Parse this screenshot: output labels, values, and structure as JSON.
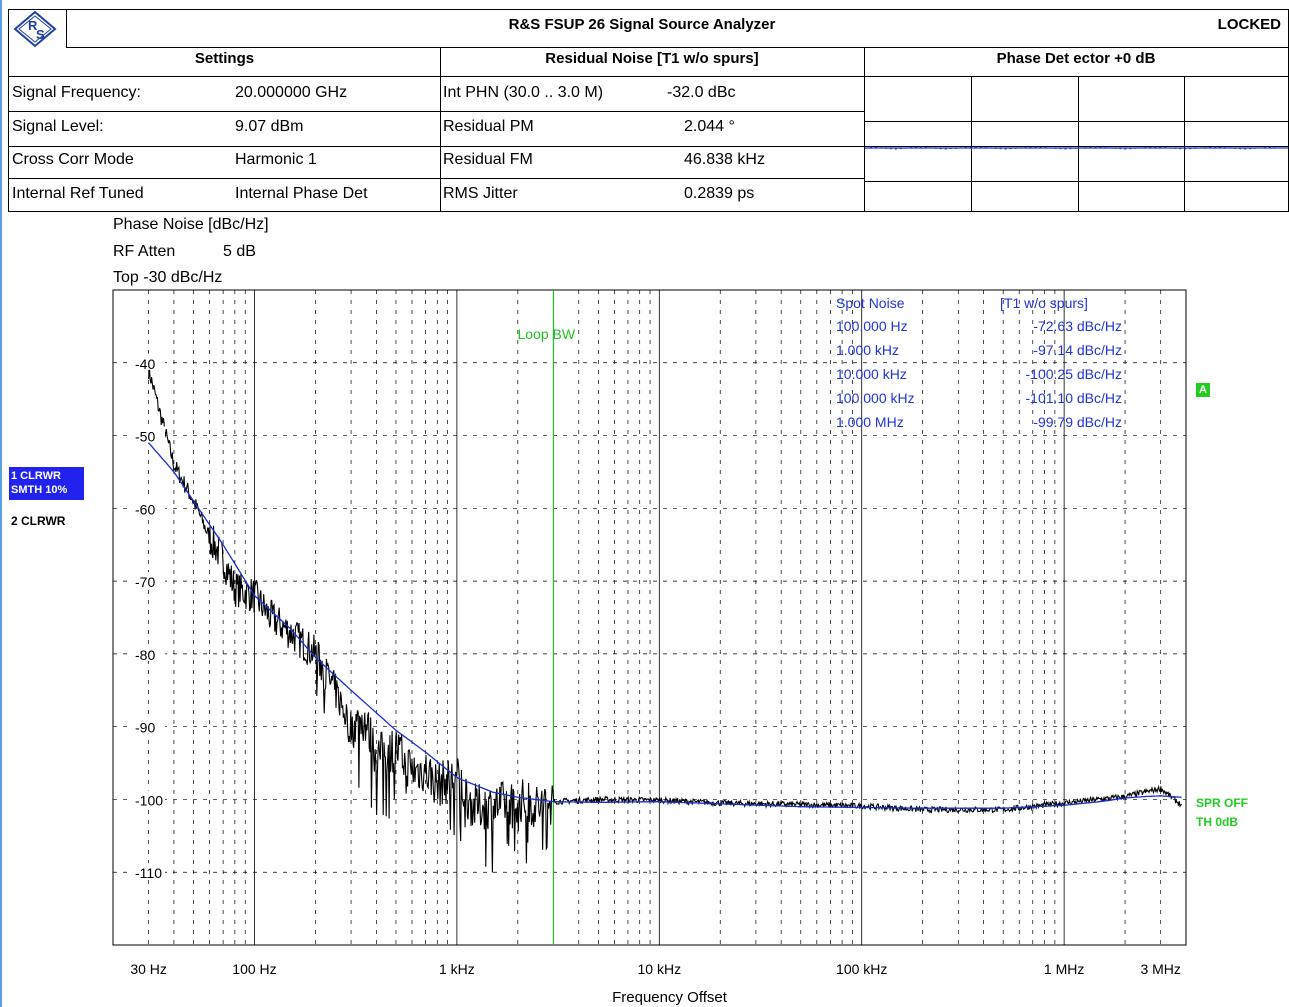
{
  "header": {
    "title": "R&S FSUP 26 Signal Source Analyzer",
    "status": "LOCKED",
    "logo_text": "R&S"
  },
  "settings": {
    "heading": "Settings",
    "rows": [
      {
        "label": "Signal Frequency:",
        "value": "20.000000 GHz"
      },
      {
        "label": "Signal Level:",
        "value": "9.07 dBm"
      },
      {
        "label": "Cross Corr Mode",
        "value": "Harmonic 1"
      },
      {
        "label": "Internal Ref Tuned",
        "value": "Internal Phase Det"
      }
    ]
  },
  "residual": {
    "heading": "Residual Noise [T1 w/o spurs]",
    "rows": [
      {
        "label": "Int PHN (30.0  .. 3.0 M)",
        "value": "-32.0 dBc"
      },
      {
        "label": "Residual PM",
        "value": "2.044 °"
      },
      {
        "label": "Residual FM",
        "value": "46.838 kHz"
      },
      {
        "label": "RMS Jitter",
        "value": "0.2839 ps"
      }
    ]
  },
  "phase_detector": {
    "heading": "Phase Det ector +0 dB"
  },
  "plot_info": {
    "line1": "Phase Noise [dBc/Hz]",
    "atten_label": "RF Atten",
    "atten_value": "5 dB",
    "top": "Top -30 dBc/Hz"
  },
  "side_labels": {
    "trace1_a": "1 CLRWR",
    "trace1_b": "SMTH 10%",
    "trace2": "2 CLRWR",
    "marker_a": "A",
    "spr_off": "SPR OFF",
    "th": "TH 0dB"
  },
  "loop_bw": "Loop BW",
  "spot_noise": {
    "heading": "Spot Noise",
    "col2": "[T1 w/o spurs]",
    "rows": [
      {
        "freq": "100.000 Hz",
        "value": "-72.63 dBc/Hz"
      },
      {
        "freq": "1.000 kHz",
        "value": "-97.14 dBc/Hz"
      },
      {
        "freq": "10.000 kHz",
        "value": "-100.25 dBc/Hz"
      },
      {
        "freq": "100.000 kHz",
        "value": "-101.10 dBc/Hz"
      },
      {
        "freq": "1.000 MHz",
        "value": "-99.79 dBc/Hz"
      }
    ]
  },
  "colors": {
    "smoothed_trace": "#1a2ed0",
    "raw_trace": "#000000",
    "loop_bw_line": "#22c122",
    "info_text": "#2233dd",
    "highlight_bg": "#2222ee"
  },
  "chart_data": {
    "type": "line",
    "xlabel": "Frequency Offset",
    "ylabel": "Phase Noise [dBc/Hz]",
    "x_scale": "log",
    "xlim": [
      20,
      4000000
    ],
    "ylim": [
      -120,
      -30
    ],
    "grid": true,
    "y_ticks": [
      -40,
      -50,
      -60,
      -70,
      -80,
      -90,
      -100,
      -110
    ],
    "y_tick_labels": [
      "-40",
      "-50",
      "-60",
      "-70",
      "-80",
      "-90",
      "-100",
      "-110"
    ],
    "x_tick_labels": [
      {
        "x": 30,
        "label": "30 Hz"
      },
      {
        "x": 100,
        "label": "100 Hz"
      },
      {
        "x": 1000,
        "label": "1 kHz"
      },
      {
        "x": 10000,
        "label": "10 kHz"
      },
      {
        "x": 100000,
        "label": "100 kHz"
      },
      {
        "x": 1000000,
        "label": "1 MHz"
      },
      {
        "x": 3000000,
        "label": "3 MHz"
      }
    ],
    "loop_bw_freq": 3000,
    "series": [
      {
        "trace": "smoothed",
        "x": [
          20,
          30,
          40,
          50,
          70,
          100,
          150,
          200,
          300,
          500,
          700,
          1000,
          1500,
          2000,
          3000,
          5000,
          10000,
          20000,
          50000,
          100000,
          200000,
          500000,
          1000000,
          1500000,
          2000000,
          2500000,
          3000000,
          3800000
        ],
        "y": [
          -45.5,
          -51,
          -55,
          -59,
          -65,
          -72,
          -76.5,
          -80.5,
          -85,
          -90.5,
          -93.5,
          -97,
          -99,
          -99.7,
          -100.3,
          -100.4,
          -100.3,
          -100.6,
          -101,
          -101.1,
          -101.2,
          -101.2,
          -100.8,
          -100.3,
          -99.8,
          -99.6,
          -99.5,
          -99.7
        ]
      },
      {
        "trace": "raw",
        "x": [
          20,
          30,
          35,
          40,
          50,
          60,
          70,
          80,
          100,
          120,
          150,
          200,
          250,
          300,
          350,
          400,
          500,
          600,
          700,
          800,
          1000,
          1200,
          1500,
          2000,
          2500,
          3000,
          5000,
          10000,
          20000,
          50000,
          100000,
          200000,
          500000,
          1000000,
          2000000,
          3000000,
          3800000
        ],
        "y": [
          -38,
          -41,
          -48,
          -54,
          -59,
          -64,
          -67,
          -71,
          -72,
          -75,
          -77,
          -80,
          -85,
          -90,
          -89,
          -94,
          -93,
          -96,
          -96,
          -98,
          -97,
          -101,
          -101,
          -100,
          -101,
          -100.3,
          -100,
          -100.1,
          -100.5,
          -100.7,
          -100.9,
          -101.4,
          -101.4,
          -100.5,
          -99.6,
          -98.5,
          -100.8
        ]
      }
    ]
  }
}
